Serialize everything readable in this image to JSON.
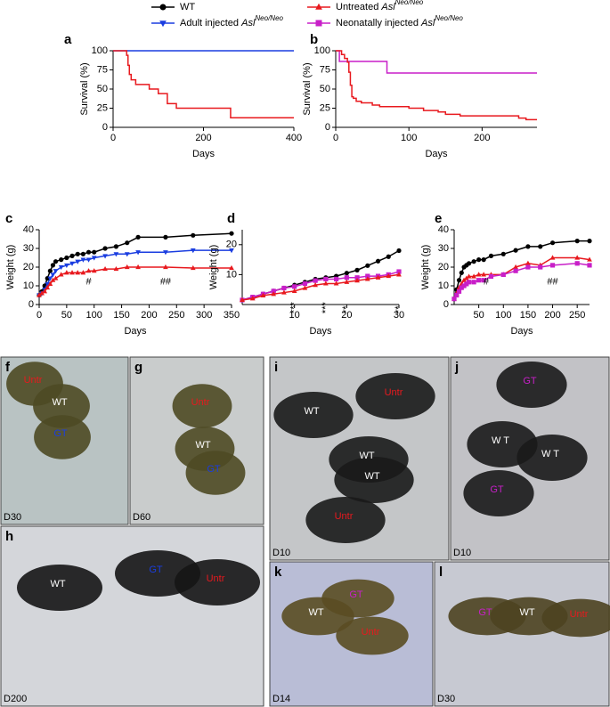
{
  "legend": [
    {
      "text": "WT",
      "color": "#000000",
      "marker": "circle"
    },
    {
      "text": "Untreated ",
      "gene": "Asl",
      "sup": "Neo/Neo",
      "color": "#e8191e",
      "marker": "triangle"
    },
    {
      "text": "Adult injected ",
      "gene": "Asl",
      "sup": "Neo/Neo",
      "color": "#1a3de0",
      "marker": "tri-down"
    },
    {
      "text": "Neonatally injected ",
      "gene": "Asl",
      "sup": "Neo/Neo",
      "color": "#c81fc8",
      "marker": "square"
    }
  ],
  "chart_data": [
    {
      "type": "line",
      "panel": "a",
      "step": true,
      "xlabel": "Days",
      "ylabel": "Survival (%)",
      "xlim": [
        0,
        400
      ],
      "xticks": [
        0,
        200,
        400
      ],
      "ylim": [
        0,
        100
      ],
      "yticks": [
        0,
        25,
        50,
        75,
        100
      ],
      "series": [
        {
          "color": "#1a3de0",
          "x": [
            0,
            400
          ],
          "values": [
            100,
            100
          ]
        },
        {
          "color": "#e8191e",
          "x": [
            0,
            30,
            33,
            36,
            40,
            50,
            60,
            80,
            100,
            120,
            140,
            250,
            260,
            400
          ],
          "values": [
            100,
            94,
            81,
            69,
            62,
            56,
            56,
            50,
            44,
            31,
            25,
            25,
            12.5,
            12.5
          ]
        }
      ]
    },
    {
      "type": "line",
      "panel": "b",
      "step": true,
      "xlabel": "Days",
      "ylabel": "Survival (%)",
      "xlim": [
        0,
        275
      ],
      "xticks": [
        0,
        100,
        200
      ],
      "ylim": [
        0,
        100
      ],
      "yticks": [
        0,
        25,
        50,
        75,
        100
      ],
      "series": [
        {
          "color": "#c81fc8",
          "x": [
            0,
            5,
            70,
            275
          ],
          "values": [
            100,
            86,
            71,
            71
          ]
        },
        {
          "color": "#e8191e",
          "x": [
            0,
            8,
            12,
            16,
            18,
            20,
            22,
            24,
            28,
            35,
            50,
            60,
            80,
            100,
            120,
            140,
            150,
            170,
            200,
            230,
            250,
            260,
            275
          ],
          "values": [
            100,
            95,
            90,
            85,
            72,
            55,
            40,
            38,
            34,
            32,
            29,
            27,
            27,
            25,
            22,
            20,
            17,
            15,
            15,
            15,
            12,
            10,
            10
          ]
        }
      ]
    },
    {
      "type": "line",
      "panel": "c",
      "xlabel": "Days",
      "ylabel": "Weight (g)",
      "xlim": [
        0,
        350
      ],
      "xticks": [
        0,
        50,
        100,
        150,
        200,
        250,
        300,
        350
      ],
      "ylim": [
        0,
        40
      ],
      "yticks": [
        0,
        10,
        20,
        30,
        40
      ],
      "x": [
        0,
        5,
        10,
        15,
        20,
        25,
        30,
        40,
        50,
        60,
        70,
        80,
        90,
        100,
        120,
        140,
        160,
        180,
        230,
        280,
        350
      ],
      "series": [
        {
          "color": "#000000",
          "marker": "circle",
          "values": [
            5,
            7,
            10,
            14,
            18,
            21,
            23,
            24,
            25,
            26,
            27,
            27,
            28,
            28,
            30,
            31,
            33,
            36,
            36,
            37,
            38
          ]
        },
        {
          "color": "#1a3de0",
          "marker": "tri-down",
          "values": [
            5,
            6,
            8,
            11,
            14,
            16,
            18,
            20,
            21,
            22,
            23,
            24,
            24,
            25,
            26,
            27,
            27,
            28,
            28,
            29,
            29
          ]
        },
        {
          "color": "#e8191e",
          "marker": "triangle",
          "values": [
            5,
            6,
            7,
            9,
            11,
            13,
            14,
            16,
            17,
            17,
            17,
            17,
            18,
            18,
            19,
            19,
            20,
            20,
            20,
            19.5,
            19.5
          ]
        }
      ],
      "annotations": [
        "#",
        "##"
      ]
    },
    {
      "type": "line",
      "panel": "d",
      "xlabel": "Days",
      "ylabel": "Weight (g)",
      "xlim": [
        0,
        30
      ],
      "xticks": [
        10,
        20,
        30
      ],
      "ylim": [
        0,
        25
      ],
      "yticks": [
        10,
        20
      ],
      "x": [
        0,
        2,
        4,
        6,
        8,
        10,
        12,
        14,
        16,
        18,
        20,
        22,
        24,
        26,
        28,
        30
      ],
      "series": [
        {
          "color": "#000000",
          "marker": "circle",
          "values": [
            1.5,
            2.5,
            3.5,
            4.5,
            5.5,
            6.5,
            7.5,
            8.5,
            9,
            9.5,
            10.5,
            11.5,
            13,
            14.5,
            16,
            18
          ]
        },
        {
          "color": "#c81fc8",
          "marker": "square",
          "values": [
            1.5,
            2.5,
            3.5,
            4.5,
            5.5,
            6,
            7,
            8,
            8.5,
            8.5,
            9,
            9,
            9.5,
            9.5,
            10,
            11
          ]
        },
        {
          "color": "#e8191e",
          "marker": "triangle",
          "values": [
            1.5,
            2,
            3,
            3.5,
            4,
            4.5,
            5.5,
            6.5,
            7,
            7,
            7.5,
            8,
            8.5,
            9,
            9.5,
            10
          ]
        }
      ],
      "annotations": [
        "***",
        "***",
        "**",
        "**"
      ]
    },
    {
      "type": "line",
      "panel": "e",
      "xlabel": "Days",
      "ylabel": "Weight (g)",
      "xlim": [
        0,
        275
      ],
      "xticks": [
        50,
        100,
        150,
        200,
        250
      ],
      "ylim": [
        0,
        40
      ],
      "yticks": [
        0,
        10,
        20,
        30,
        40
      ],
      "x": [
        0,
        5,
        10,
        15,
        20,
        25,
        30,
        40,
        50,
        60,
        75,
        100,
        125,
        150,
        175,
        200,
        250,
        275
      ],
      "series": [
        {
          "color": "#000000",
          "marker": "circle",
          "values": [
            3,
            8,
            13,
            17,
            20,
            21,
            22,
            23,
            24,
            24,
            26,
            27,
            29,
            31,
            31,
            33,
            34,
            34
          ]
        },
        {
          "color": "#e8191e",
          "marker": "triangle",
          "values": [
            3,
            6,
            9,
            11,
            13,
            14,
            15,
            15,
            16,
            16,
            16,
            16,
            20,
            22,
            21,
            25,
            25,
            24
          ]
        },
        {
          "color": "#c81fc8",
          "marker": "square",
          "values": [
            3,
            5,
            7,
            9,
            10,
            11,
            12,
            12,
            13,
            13,
            15,
            16,
            18,
            20,
            20,
            21,
            22,
            21
          ]
        }
      ],
      "annotations": [
        "#",
        "##"
      ]
    }
  ],
  "photos": [
    {
      "panel": "f",
      "day": "D30",
      "labels": [
        {
          "text": "Untr",
          "color": "#e8191e"
        },
        {
          "text": "WT",
          "color": "#ffffff"
        },
        {
          "text": "GT",
          "color": "#1a3de0"
        }
      ]
    },
    {
      "panel": "g",
      "day": "D60",
      "labels": [
        {
          "text": "Untr",
          "color": "#e8191e"
        },
        {
          "text": "WT",
          "color": "#ffffff"
        },
        {
          "text": "GT",
          "color": "#1a3de0"
        }
      ]
    },
    {
      "panel": "h",
      "day": "D200",
      "labels": [
        {
          "text": "WT",
          "color": "#ffffff"
        },
        {
          "text": "GT",
          "color": "#1a3de0"
        },
        {
          "text": "Untr",
          "color": "#e8191e"
        }
      ]
    },
    {
      "panel": "i",
      "day": "D10",
      "labels": [
        {
          "text": "WT",
          "color": "#ffffff"
        },
        {
          "text": "Untr",
          "color": "#e8191e"
        },
        {
          "text": "WT",
          "color": "#ffffff"
        },
        {
          "text": "WT",
          "color": "#ffffff"
        },
        {
          "text": "Untr",
          "color": "#e8191e"
        }
      ]
    },
    {
      "panel": "j",
      "day": "D10",
      "labels": [
        {
          "text": "GT",
          "color": "#c81fc8"
        },
        {
          "text": "W T",
          "color": "#ffffff"
        },
        {
          "text": "W T",
          "color": "#ffffff"
        },
        {
          "text": "GT",
          "color": "#c81fc8"
        }
      ]
    },
    {
      "panel": "k",
      "day": "D14",
      "labels": [
        {
          "text": "WT",
          "color": "#ffffff"
        },
        {
          "text": "GT",
          "color": "#c81fc8"
        },
        {
          "text": "Untr",
          "color": "#e8191e"
        }
      ]
    },
    {
      "panel": "l",
      "day": "D30",
      "labels": [
        {
          "text": "GT",
          "color": "#c81fc8"
        },
        {
          "text": "WT",
          "color": "#ffffff"
        },
        {
          "text": "Untr",
          "color": "#e8191e"
        }
      ]
    }
  ]
}
